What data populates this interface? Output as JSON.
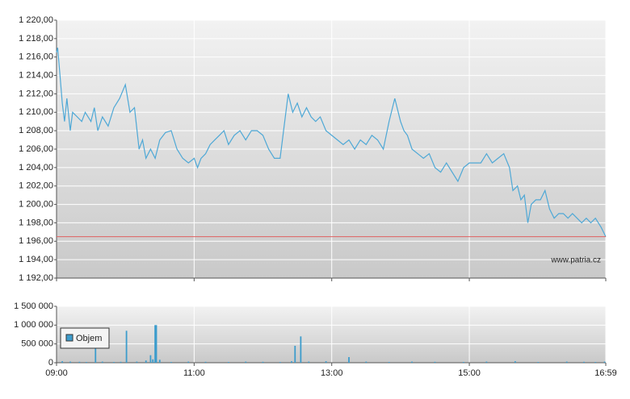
{
  "chart_data": [
    {
      "type": "line",
      "x": [
        540,
        541,
        543,
        545,
        547,
        549,
        552,
        554,
        558,
        562,
        565,
        570,
        573,
        576,
        580,
        585,
        590,
        595,
        600,
        604,
        608,
        612,
        615,
        618,
        622,
        626,
        630,
        635,
        640,
        645,
        650,
        655,
        660,
        663,
        666,
        670,
        674,
        678,
        682,
        686,
        690,
        695,
        700,
        705,
        710,
        715,
        720,
        725,
        730,
        735,
        738,
        742,
        746,
        750,
        754,
        758,
        762,
        766,
        770,
        775,
        780,
        785,
        790,
        795,
        800,
        805,
        810,
        815,
        820,
        825,
        830,
        835,
        840,
        843,
        846,
        850,
        855,
        860,
        865,
        870,
        875,
        880,
        885,
        890,
        895,
        900,
        905,
        910,
        915,
        920,
        925,
        930,
        935,
        938,
        942,
        945,
        948,
        951,
        954,
        958,
        962,
        966,
        970,
        974,
        978,
        982,
        986,
        990,
        994,
        998,
        1002,
        1006,
        1010,
        1015,
        1019
      ],
      "series": [
        {
          "color": "#4ea8d6",
          "values": [
            1216.5,
            1217,
            1214,
            1211,
            1209,
            1211.5,
            1208,
            1210,
            1209.5,
            1209,
            1210,
            1209,
            1210.5,
            1208,
            1209.5,
            1208.5,
            1210.5,
            1211.5,
            1213,
            1210,
            1210.5,
            1206,
            1207,
            1205,
            1206,
            1205,
            1207,
            1207.8,
            1208,
            1206,
            1205,
            1204.5,
            1205,
            1204,
            1205,
            1205.5,
            1206.5,
            1207,
            1207.5,
            1208,
            1206.5,
            1207.5,
            1208,
            1207,
            1208,
            1208,
            1207.5,
            1206,
            1205,
            1205,
            1208,
            1212,
            1210,
            1211,
            1209.5,
            1210.5,
            1209.5,
            1209,
            1209.5,
            1208,
            1207.5,
            1207,
            1206.5,
            1207,
            1206,
            1207,
            1206.5,
            1207.5,
            1207,
            1206,
            1209,
            1211.5,
            1209,
            1208,
            1207.5,
            1206,
            1205.5,
            1205,
            1205.5,
            1204,
            1203.5,
            1204.5,
            1203.5,
            1202.5,
            1204,
            1204.5,
            1204.5,
            1204.5,
            1205.5,
            1204.5,
            1205,
            1205.5,
            1204,
            1201.5,
            1202,
            1200.5,
            1201,
            1198,
            1200,
            1200.5,
            1200.5,
            1201.5,
            1199.5,
            1198.5,
            1199,
            1199,
            1198.5,
            1199,
            1198.5,
            1198,
            1198.5,
            1198,
            1198.5,
            1197.5,
            1196.5
          ]
        }
      ],
      "xlim": [
        540,
        1019
      ],
      "ylim": [
        1192,
        1220
      ],
      "yticks": [
        {
          "value": 1192,
          "label": "1 192,00"
        },
        {
          "value": 1194,
          "label": "1 194,00"
        },
        {
          "value": 1196,
          "label": "1 196,00"
        },
        {
          "value": 1198,
          "label": "1 198,00"
        },
        {
          "value": 1200,
          "label": "1 200,00"
        },
        {
          "value": 1202,
          "label": "1 202,00"
        },
        {
          "value": 1204,
          "label": "1 204,00"
        },
        {
          "value": 1206,
          "label": "1 206,00"
        },
        {
          "value": 1208,
          "label": "1 208,00"
        },
        {
          "value": 1210,
          "label": "1 210,00"
        },
        {
          "value": 1212,
          "label": "1 212,00"
        },
        {
          "value": 1214,
          "label": "1 214,00"
        },
        {
          "value": 1216,
          "label": "1 216,00"
        },
        {
          "value": 1218,
          "label": "1 218,00"
        },
        {
          "value": 1220,
          "label": "1 220,00"
        }
      ],
      "reference_line": {
        "value": 1196.5,
        "color": "#e06060"
      },
      "annotation": "www.patria.cz",
      "grid": true
    },
    {
      "type": "bar",
      "x": [
        545,
        552,
        560,
        566,
        574,
        580,
        590,
        596,
        601,
        610,
        618,
        622,
        624,
        626,
        627,
        630,
        640,
        655,
        670,
        690,
        705,
        720,
        735,
        745,
        748,
        753,
        760,
        775,
        795,
        810,
        830,
        850,
        870,
        895,
        915,
        940,
        960,
        985,
        1000,
        1010,
        1018
      ],
      "series": [
        {
          "name": "Objem",
          "color": "#3c9ccc",
          "values": [
            40000,
            30000,
            25000,
            20000,
            400000,
            30000,
            20000,
            25000,
            850000,
            30000,
            60000,
            200000,
            90000,
            1000000,
            1000000,
            80000,
            20000,
            30000,
            25000,
            20000,
            30000,
            25000,
            20000,
            40000,
            450000,
            700000,
            30000,
            40000,
            150000,
            30000,
            20000,
            30000,
            25000,
            20000,
            30000,
            40000,
            20000,
            30000,
            25000,
            20000,
            30000
          ]
        }
      ],
      "legend": "top-left",
      "xlim": [
        540,
        1019
      ],
      "xticks": [
        {
          "value": 540,
          "label": "09:00"
        },
        {
          "value": 660,
          "label": "11:00"
        },
        {
          "value": 780,
          "label": "13:00"
        },
        {
          "value": 900,
          "label": "15:00"
        },
        {
          "value": 1019,
          "label": "16:59"
        }
      ],
      "ylim": [
        0,
        1500000
      ],
      "yticks": [
        0,
        {
          "value": 500000,
          "label": "500 000"
        },
        {
          "value": 1000000,
          "label": "1 000 000"
        },
        {
          "value": 1500000,
          "label": "1 500 000"
        }
      ],
      "grid": true
    }
  ]
}
